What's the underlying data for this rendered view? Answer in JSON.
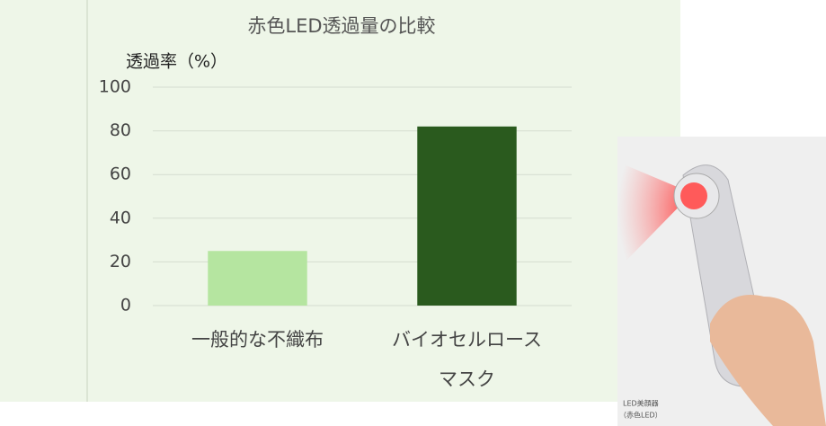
{
  "chart_data": {
    "type": "bar",
    "title": "赤色LED透過量の比較",
    "y_label": "透過率（%）",
    "categories": [
      "一般的な不織布",
      "バイオセルロースマスク"
    ],
    "values": [
      25,
      82
    ],
    "colors": [
      "#b5e5a0",
      "#2a5a1e"
    ],
    "ylim": [
      0,
      100
    ],
    "yticks": [
      0,
      20,
      40,
      60,
      80,
      100
    ],
    "grid": true
  },
  "photo": {
    "caption": [
      "LED美顔器",
      "（赤色LED）"
    ]
  }
}
